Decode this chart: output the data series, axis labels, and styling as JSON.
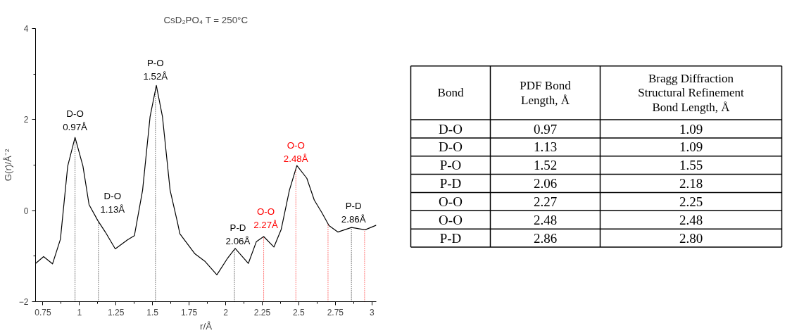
{
  "chart_data": [
    {
      "type": "line",
      "title": "CsD₂PO₄ T = 250°C",
      "xlabel": "r/Å",
      "ylabel": "G(r)/Å⁻²",
      "xlim": [
        0.7,
        3.03
      ],
      "xticks": [
        0.75,
        1.0,
        1.25,
        1.5,
        1.75,
        2.0,
        2.25,
        2.5,
        2.75,
        3.0
      ],
      "ylim": [
        -2,
        4
      ],
      "yticks": [
        -2,
        0,
        2,
        4
      ],
      "grid": false,
      "marker": "none",
      "line_style": "solid",
      "x": [
        0.7,
        0.755,
        0.816,
        0.87,
        0.92,
        0.97,
        1.024,
        1.066,
        1.126,
        1.177,
        1.245,
        1.33,
        1.376,
        1.432,
        1.483,
        1.526,
        1.568,
        1.62,
        1.67,
        1.687,
        1.79,
        1.857,
        1.94,
        2.01,
        2.065,
        2.155,
        2.21,
        2.26,
        2.33,
        2.38,
        2.436,
        2.487,
        2.555,
        2.606,
        2.657,
        2.707,
        2.767,
        2.86,
        2.954,
        3.03
      ],
      "series": [
        {
          "color": "#000000",
          "values": [
            -1.16,
            -1.01,
            -1.17,
            -0.63,
            0.98,
            1.61,
            0.98,
            0.13,
            -0.22,
            -0.47,
            -0.84,
            -0.64,
            -0.55,
            0.45,
            2.06,
            2.75,
            2.06,
            0.45,
            -0.25,
            -0.51,
            -0.95,
            -1.11,
            -1.41,
            -1.06,
            -0.83,
            -1.16,
            -0.68,
            -0.57,
            -0.8,
            -0.41,
            0.45,
            0.99,
            0.71,
            0.23,
            -0.04,
            -0.33,
            -0.47,
            -0.37,
            -0.42,
            -0.32
          ]
        }
      ],
      "ref_lines": [
        {
          "axis": "x",
          "value": 0.97,
          "label": "D-O\n0.97Å",
          "color": "#000000",
          "line_style": "dotted"
        },
        {
          "axis": "x",
          "value": 1.13,
          "label": "D-O\n1.13Å",
          "color": "#000000",
          "line_style": "dotted"
        },
        {
          "axis": "x",
          "value": 1.52,
          "label": "P-O\n1.52Å",
          "color": "#000000",
          "line_style": "dotted"
        },
        {
          "axis": "x",
          "value": 2.06,
          "label": "P-D\n2.06Å",
          "color": "#000000",
          "line_style": "dotted"
        },
        {
          "axis": "x",
          "value": 2.26,
          "label": "O-O\n2.27Å",
          "color": "#ff0000",
          "line_style": "dotted"
        },
        {
          "axis": "x",
          "value": 2.48,
          "label": "O-O\n2.48Å",
          "color": "#ff0000",
          "line_style": "dotted"
        },
        {
          "axis": "x",
          "value": 2.7,
          "color": "#ff0000",
          "line_style": "dotted"
        },
        {
          "axis": "x",
          "value": 2.86,
          "label": "P-D\n2.86Å",
          "color": "#000000",
          "line_style": "dotted"
        },
        {
          "axis": "x",
          "value": 2.95,
          "color": "#ff0000",
          "line_style": "dotted"
        }
      ]
    },
    {
      "type": "other",
      "categories": [
        "Bond",
        "PDF Bond\nLength, Å",
        "Bragg Diffraction\nStructural Refinement\nBond Length, Å"
      ],
      "cell_labels": [
        [
          "D-O",
          "0.97",
          "1.09"
        ],
        [
          "D-O",
          "1.13",
          "1.09"
        ],
        [
          "P-O",
          "1.52",
          "1.55"
        ],
        [
          "P-D",
          "2.06",
          "2.18"
        ],
        [
          "O-O",
          "2.27",
          "2.25"
        ],
        [
          "O-O",
          "2.48",
          "2.48"
        ],
        [
          "P-D",
          "2.86",
          "2.80"
        ]
      ]
    }
  ]
}
